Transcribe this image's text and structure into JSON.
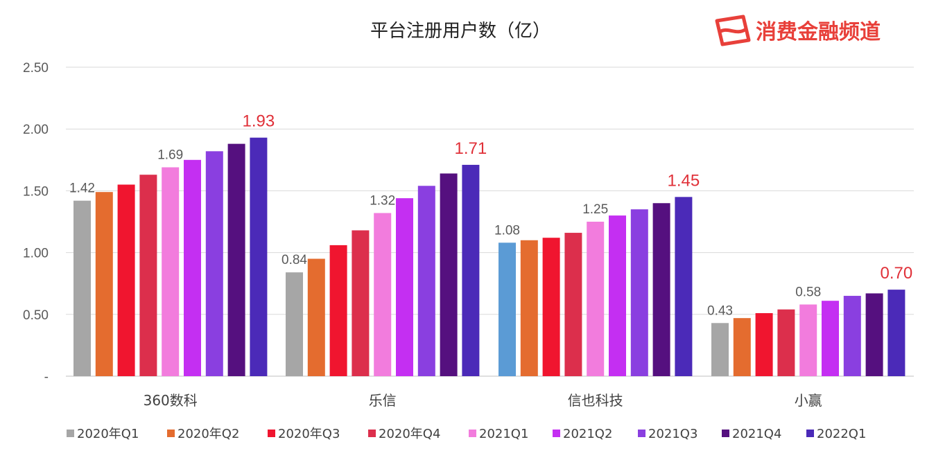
{
  "logo": {
    "text": "消费金融频道",
    "color": "#e8403a"
  },
  "chart_data": {
    "type": "bar",
    "title": "平台注册用户数（亿）",
    "xlabel": "",
    "ylabel": "",
    "ylim": [
      0,
      2.5
    ],
    "yticks": [
      0,
      0.5,
      1.0,
      1.5,
      2.0,
      2.5
    ],
    "ytick_labels": [
      "-",
      "0.50",
      "1.00",
      "1.50",
      "2.00",
      "2.50"
    ],
    "grid": true,
    "legend_position": "bottom",
    "categories": [
      "360数科",
      "乐信",
      "信也科技",
      "小赢"
    ],
    "series": [
      {
        "name": "2020年Q1",
        "color": "#a6a6a6",
        "values": [
          1.42,
          0.84,
          1.08,
          0.43
        ]
      },
      {
        "name": "2020年Q2",
        "color": "#e46c2f",
        "values": [
          1.49,
          0.95,
          1.1,
          0.47
        ]
      },
      {
        "name": "2020年Q3",
        "color": "#f0152f",
        "values": [
          1.55,
          1.06,
          1.12,
          0.51
        ]
      },
      {
        "name": "2020年Q4",
        "color": "#dc2f4c",
        "values": [
          1.63,
          1.18,
          1.16,
          0.54
        ]
      },
      {
        "name": "2021Q1",
        "color": "#f27cdd",
        "values": [
          1.69,
          1.32,
          1.25,
          0.58
        ]
      },
      {
        "name": "2021Q2",
        "color": "#c42ff2",
        "values": [
          1.75,
          1.44,
          1.3,
          0.61
        ]
      },
      {
        "name": "2021Q3",
        "color": "#8a3fe0",
        "values": [
          1.82,
          1.54,
          1.35,
          0.65
        ]
      },
      {
        "name": "2021Q4",
        "color": "#55107f",
        "values": [
          1.88,
          1.64,
          1.4,
          0.67
        ]
      },
      {
        "name": "2022Q1",
        "color": "#4b2ab8",
        "values": [
          1.93,
          1.71,
          1.45,
          0.7
        ]
      }
    ],
    "category_first_bar_colors": [
      "#a6a6a6",
      "#a6a6a6",
      "#5b9bd5",
      "#a6a6a6"
    ],
    "data_labels": [
      {
        "category": 0,
        "series": 0,
        "text": "1.42",
        "highlight": false
      },
      {
        "category": 0,
        "series": 4,
        "text": "1.69",
        "highlight": false
      },
      {
        "category": 0,
        "series": 8,
        "text": "1.93",
        "highlight": true
      },
      {
        "category": 1,
        "series": 0,
        "text": "0.84",
        "highlight": false
      },
      {
        "category": 1,
        "series": 4,
        "text": "1.32",
        "highlight": false
      },
      {
        "category": 1,
        "series": 8,
        "text": "1.71",
        "highlight": true
      },
      {
        "category": 2,
        "series": 0,
        "text": "1.08",
        "highlight": false
      },
      {
        "category": 2,
        "series": 4,
        "text": "1.25",
        "highlight": false
      },
      {
        "category": 2,
        "series": 8,
        "text": "1.45",
        "highlight": true
      },
      {
        "category": 3,
        "series": 0,
        "text": "0.43",
        "highlight": false
      },
      {
        "category": 3,
        "series": 4,
        "text": "0.58",
        "highlight": false
      },
      {
        "category": 3,
        "series": 8,
        "text": "0.70",
        "highlight": true
      }
    ]
  }
}
